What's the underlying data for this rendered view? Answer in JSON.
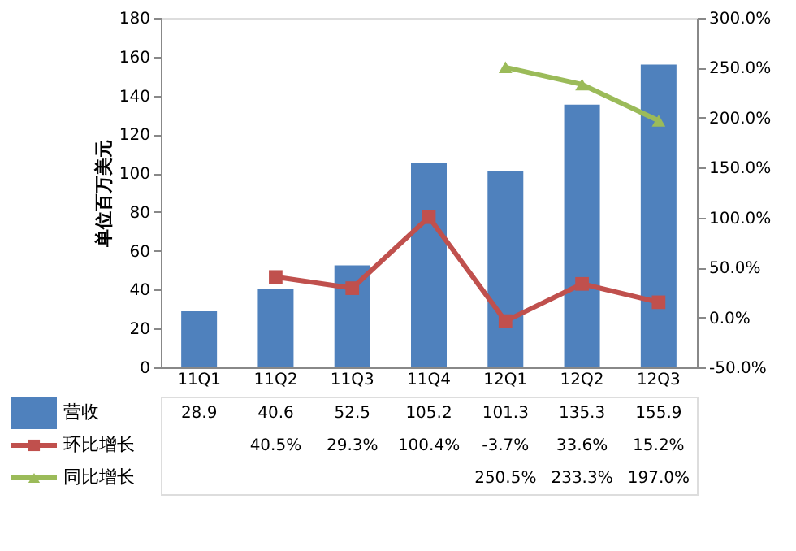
{
  "chart_data": {
    "type": "bar",
    "ylabel": "单位百万美元",
    "categories": [
      "11Q1",
      "11Q2",
      "11Q3",
      "11Q4",
      "12Q1",
      "12Q2",
      "12Q3"
    ],
    "series": [
      {
        "name": "营收",
        "color": "#4f81bd",
        "values": [
          28.9,
          40.6,
          52.5,
          105.2,
          101.3,
          135.3,
          155.9
        ],
        "value_labels": [
          "28.9",
          "40.6",
          "52.5",
          "105.2",
          "101.3",
          "135.3",
          "155.9"
        ]
      },
      {
        "name": "环比增长",
        "type": "line",
        "axis": "y2",
        "marker": "square",
        "color": "#c0504d",
        "values": [
          null,
          40.5,
          29.3,
          100.4,
          -3.7,
          33.6,
          15.2
        ],
        "value_labels": [
          null,
          "40.5%",
          "29.3%",
          "100.4%",
          "-3.7%",
          "33.6%",
          "15.2%"
        ]
      },
      {
        "name": "同比增长",
        "type": "line",
        "axis": "y2",
        "marker": "triangle",
        "color": "#9bbb59",
        "values": [
          null,
          null,
          null,
          null,
          250.5,
          233.3,
          197.0
        ],
        "value_labels": [
          null,
          null,
          null,
          null,
          "250.5%",
          "233.3%",
          "197.0%"
        ]
      }
    ],
    "ylim": [
      0,
      180
    ],
    "yticks": [
      0,
      20,
      40,
      60,
      80,
      100,
      120,
      140,
      160,
      180
    ],
    "y2lim": [
      -50,
      300
    ],
    "y2ticks": [
      {
        "value": -50,
        "label": "-50.0%"
      },
      {
        "value": 0,
        "label": "0.0%"
      },
      {
        "value": 50,
        "label": "50.0%"
      },
      {
        "value": 100,
        "label": "100.0%"
      },
      {
        "value": 150,
        "label": "150.0%"
      },
      {
        "value": 200,
        "label": "200.0%"
      },
      {
        "value": 250,
        "label": "250.0%"
      },
      {
        "value": 300,
        "label": "300.0%"
      }
    ],
    "legend": "bottom"
  }
}
